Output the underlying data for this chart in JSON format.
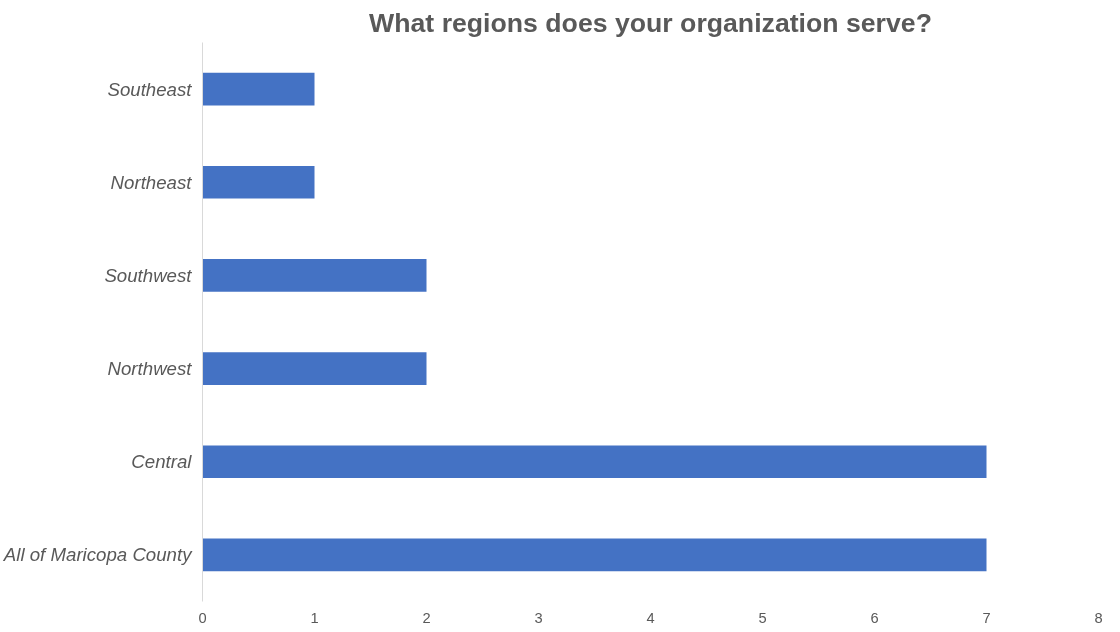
{
  "chart_data": {
    "type": "bar",
    "orientation": "horizontal",
    "title": "What regions does your organization serve?",
    "categories": [
      "Southeast",
      "Northeast",
      "Southwest",
      "Northwest",
      "Central",
      "All of Maricopa County"
    ],
    "values": [
      1,
      1,
      2,
      2,
      7,
      7
    ],
    "color": "#4472c4",
    "xlim": [
      0,
      8
    ],
    "xticks": [
      0,
      1,
      2,
      3,
      4,
      5,
      6,
      7,
      8
    ],
    "grid": false
  }
}
